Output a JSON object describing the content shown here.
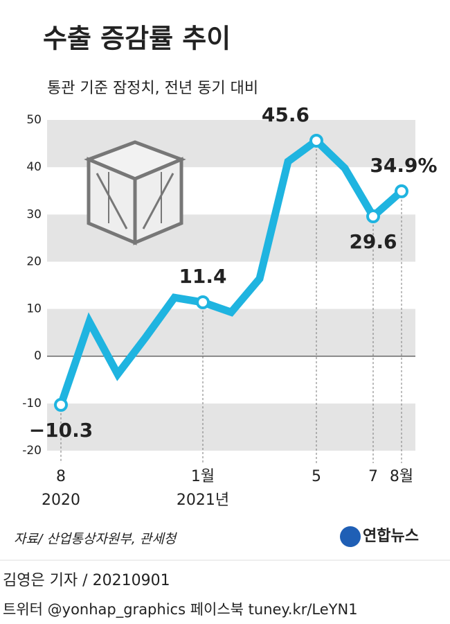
{
  "chart_data": {
    "type": "line",
    "title": "수출 증감률 추이",
    "subtitle": "통관 기준 잠정치, 전년 동기 대비",
    "categories": [
      "8",
      null,
      null,
      null,
      null,
      "1월",
      null,
      null,
      null,
      "5",
      null,
      "7",
      "8월"
    ],
    "year_labels": [
      "2020",
      null,
      null,
      null,
      null,
      "2021년",
      null,
      null,
      null,
      null,
      null,
      null,
      null
    ],
    "values": [
      -10.3,
      7.3,
      -3.8,
      4.1,
      12.4,
      11.4,
      9.3,
      16.4,
      41.2,
      45.6,
      39.8,
      29.6,
      34.9
    ],
    "value_labels": [
      "−10.3",
      null,
      null,
      null,
      null,
      "11.4",
      null,
      null,
      null,
      "45.6",
      null,
      "29.6",
      "34.9%"
    ],
    "color": "#1fb4e0",
    "ylim": [
      -20,
      50
    ],
    "yticks": [
      -20,
      -10,
      0,
      10,
      20,
      30,
      40,
      50
    ],
    "source": "자료/ 산업통상자원부, 관세청"
  },
  "logo": "연합뉴스",
  "footer": {
    "byline": "김영은 기자 / 20210901",
    "links": "트위터 @yonhap_graphics  페이스북 tuney.kr/LeYN1"
  }
}
